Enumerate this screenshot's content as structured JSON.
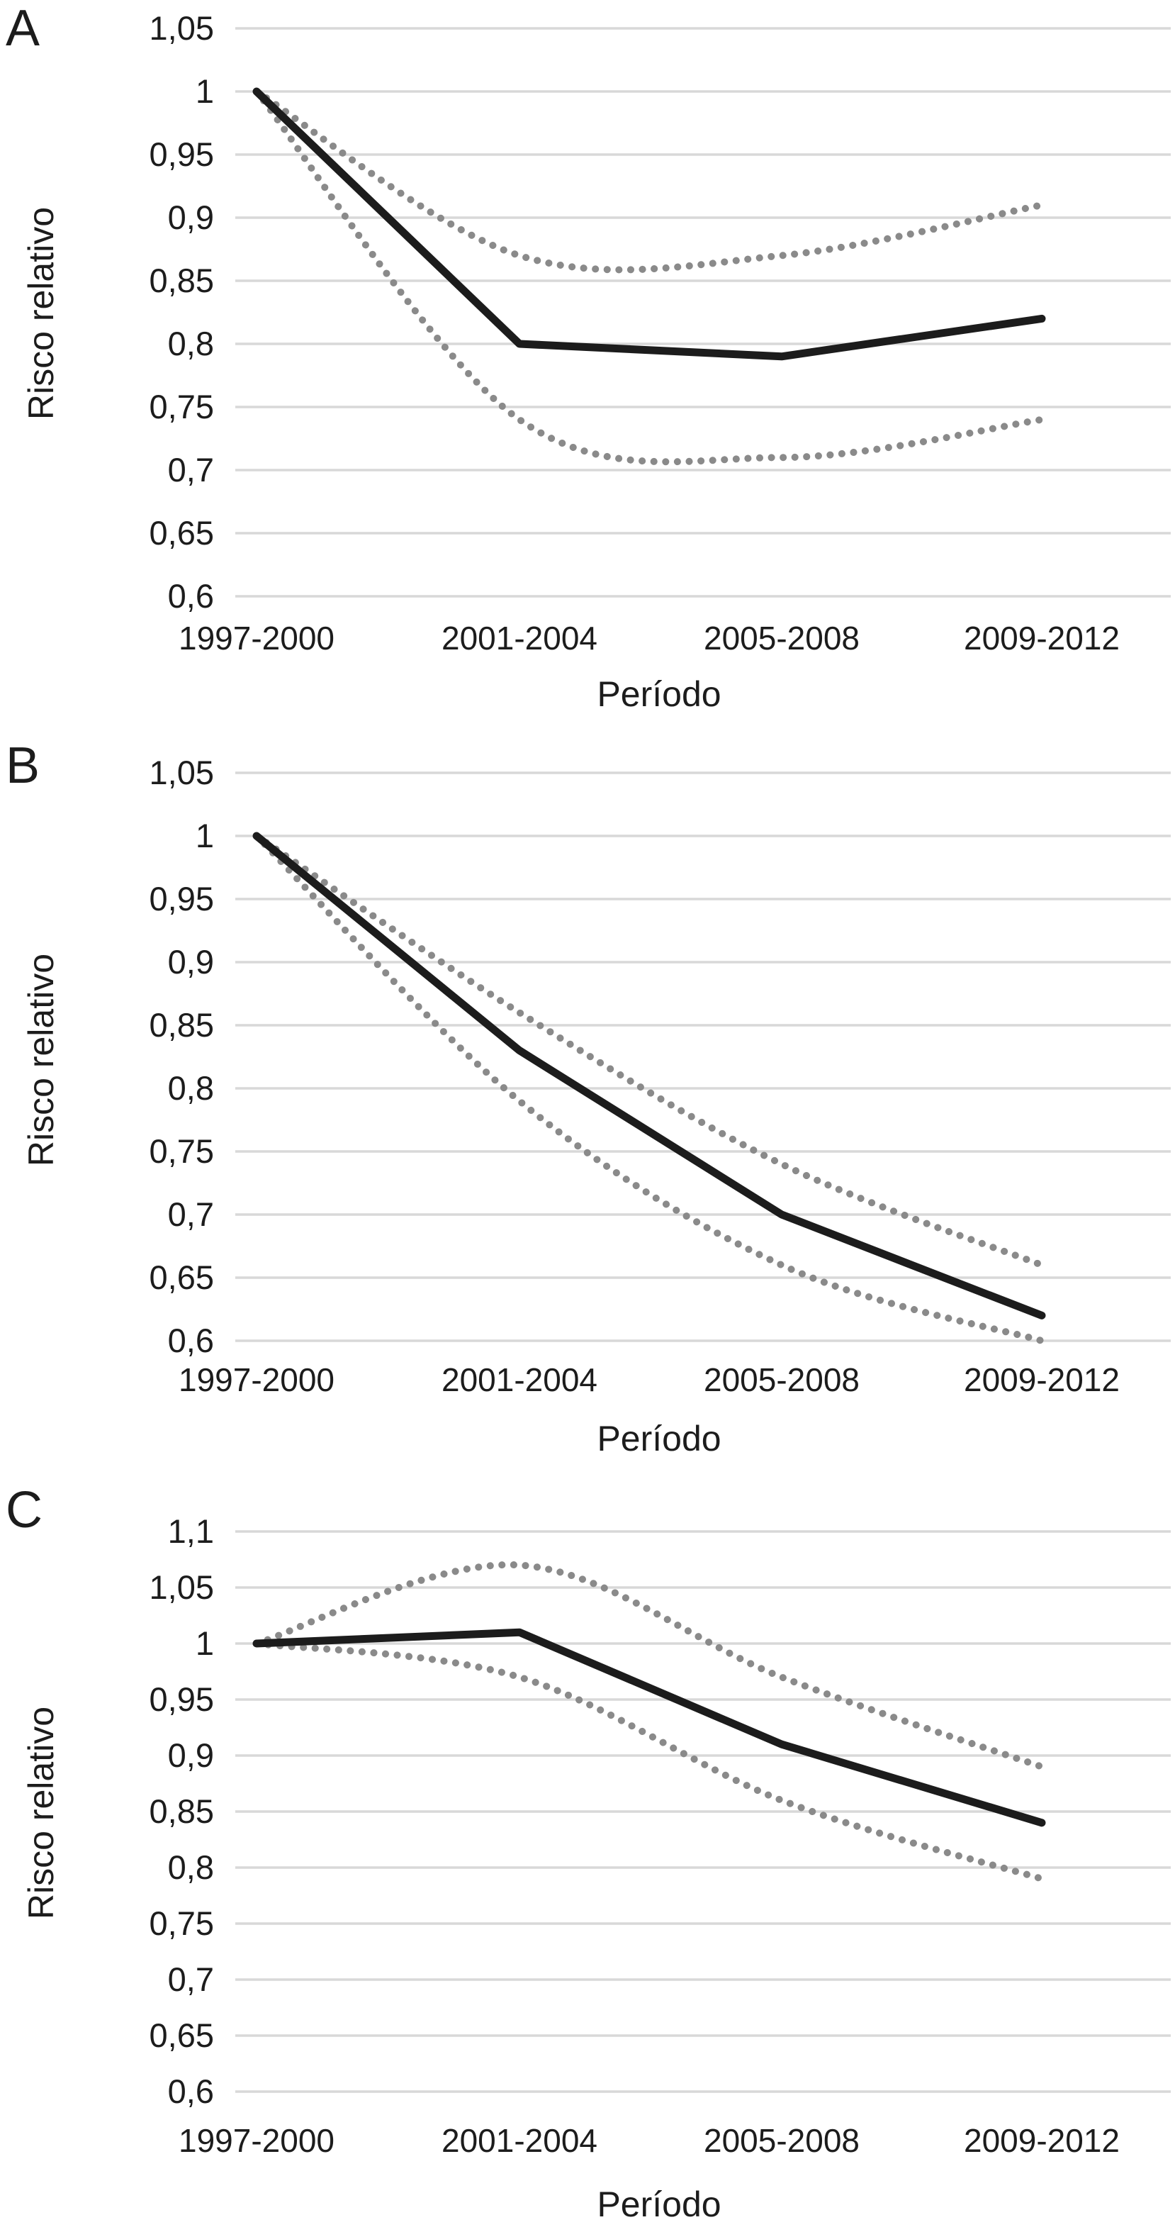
{
  "page": {
    "background": "#ffffff",
    "description": "Three stacked line charts (A, B, C) of relative risk by period with dotted 95% confidence limit lines"
  },
  "colors": {
    "solid_line": "#1c1c1c",
    "dotted_line": "#8a8a8a",
    "gridline": "#d8d8d8",
    "text": "#1c1c1c"
  },
  "chart_data": [
    {
      "id": "A",
      "type": "line",
      "title": "",
      "xlabel": "Período",
      "ylabel": "Risco relativo",
      "categories": [
        "1997-2000",
        "2001-2004",
        "2005-2008",
        "2009-2012"
      ],
      "ylim": [
        0.6,
        1.05
      ],
      "ytick_values": [
        1.05,
        1.0,
        0.95,
        0.9,
        0.85,
        0.8,
        0.75,
        0.7,
        0.65,
        0.6
      ],
      "ytick_labels": [
        "1,05",
        "1",
        "0,95",
        "0,9",
        "0,85",
        "0,8",
        "0,75",
        "0,7",
        "0,65",
        "0,6"
      ],
      "grid": true,
      "legend": "none",
      "series": [
        {
          "name": "risco-relativo",
          "style": "solid",
          "values": [
            1.0,
            0.8,
            0.79,
            0.82
          ]
        },
        {
          "name": "limite-superior",
          "style": "dotted",
          "values": [
            1.0,
            0.87,
            0.87,
            0.91
          ]
        },
        {
          "name": "limite-inferior",
          "style": "dotted",
          "values": [
            1.0,
            0.74,
            0.71,
            0.74
          ]
        }
      ]
    },
    {
      "id": "B",
      "type": "line",
      "title": "",
      "xlabel": "Período",
      "ylabel": "Risco relativo",
      "categories": [
        "1997-2000",
        "2001-2004",
        "2005-2008",
        "2009-2012"
      ],
      "ylim": [
        0.6,
        1.05
      ],
      "ytick_values": [
        1.05,
        1.0,
        0.95,
        0.9,
        0.85,
        0.8,
        0.75,
        0.7,
        0.65,
        0.6
      ],
      "ytick_labels": [
        "1,05",
        "1",
        "0,95",
        "0,9",
        "0,85",
        "0,8",
        "0,75",
        "0,7",
        "0,65",
        "0,6"
      ],
      "grid": true,
      "legend": "none",
      "series": [
        {
          "name": "risco-relativo",
          "style": "solid",
          "values": [
            1.0,
            0.83,
            0.7,
            0.62
          ]
        },
        {
          "name": "limite-superior",
          "style": "dotted",
          "values": [
            1.0,
            0.86,
            0.74,
            0.66
          ]
        },
        {
          "name": "limite-inferior",
          "style": "dotted",
          "values": [
            1.0,
            0.79,
            0.66,
            0.6
          ]
        }
      ]
    },
    {
      "id": "C",
      "type": "line",
      "title": "",
      "xlabel": "Período",
      "ylabel": "Risco relativo",
      "categories": [
        "1997-2000",
        "2001-2004",
        "2005-2008",
        "2009-2012"
      ],
      "ylim": [
        0.6,
        1.1
      ],
      "ytick_values": [
        1.1,
        1.05,
        1.0,
        0.95,
        0.9,
        0.85,
        0.8,
        0.75,
        0.7,
        0.65,
        0.6
      ],
      "ytick_labels": [
        "1,1",
        "1,05",
        "1",
        "0,95",
        "0,9",
        "0,85",
        "0,8",
        "0,75",
        "0,7",
        "0,65",
        "0,6"
      ],
      "grid": true,
      "legend": "none",
      "series": [
        {
          "name": "risco-relativo",
          "style": "solid",
          "values": [
            1.0,
            1.01,
            0.91,
            0.84
          ]
        },
        {
          "name": "limite-superior",
          "style": "dotted",
          "values": [
            1.0,
            1.07,
            0.97,
            0.89
          ]
        },
        {
          "name": "limite-inferior",
          "style": "dotted",
          "values": [
            1.0,
            0.97,
            0.86,
            0.79
          ]
        }
      ]
    }
  ]
}
